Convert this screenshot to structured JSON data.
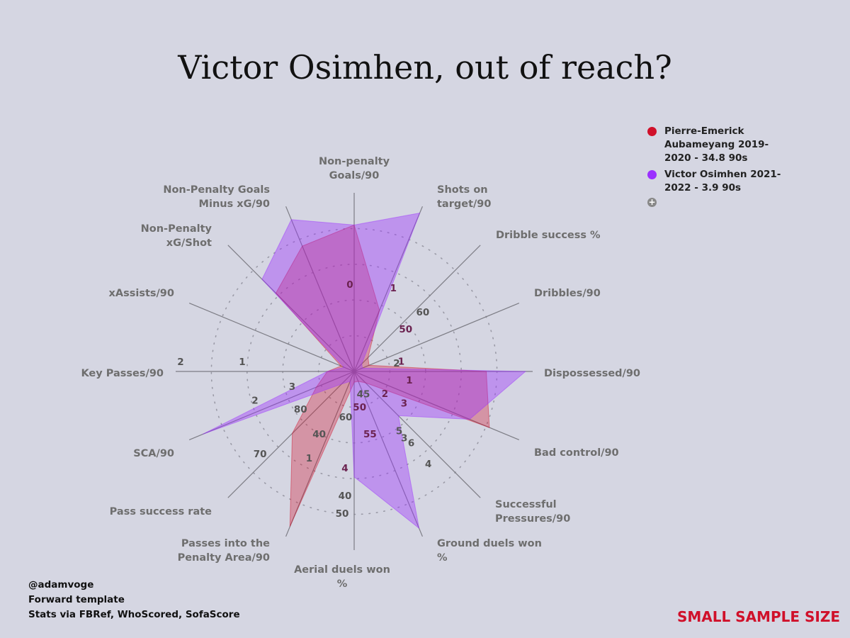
{
  "title": "Victor Osimhen, out of reach?",
  "legend": {
    "items": [
      {
        "label": "Pierre-Emerick Aubameyang 2019-2020 - 34.8 90s",
        "color": "#d0102a"
      },
      {
        "label": "Victor Osimhen 2021-2022 - 3.9 90s",
        "color": "#9b30ff"
      }
    ],
    "more_icon": "plus-circle-icon"
  },
  "footer": {
    "lines": [
      "@adamvoge",
      "Forward template",
      "Stats via FBRef, WhoScored, SofaScore"
    ]
  },
  "warning": "SMALL SAMPLE SIZE",
  "chart_data": {
    "type": "radar",
    "title": "Victor Osimhen, out of reach?",
    "axes": [
      "Non-penalty Goals/90",
      "Shots on target/90",
      "Dribble success %",
      "Dribbles/90",
      "Dispossessed/90",
      "Bad control/90",
      "Successful Pressures/90",
      "Ground duels won %",
      "Aerial duels won %",
      "Passes into the Penalty Area/90",
      "Pass success rate",
      "SCA/90",
      "Key Passes/90",
      "xAssists/90",
      "Non-Penalty xG/Shot",
      "Non-Penalty Goals Minus xG/90"
    ],
    "axis_label_lines": [
      [
        "Non-penalty",
        "Goals/90"
      ],
      [
        "Shots on",
        "target/90"
      ],
      [
        "Dribble success %"
      ],
      [
        "Dribbles/90"
      ],
      [
        "Dispossessed/90"
      ],
      [
        "Bad control/90"
      ],
      [
        "Successful",
        "Pressures/90"
      ],
      [
        "Ground duels won",
        "%"
      ],
      [
        "Aerial duels won",
        "%"
      ],
      [
        "Passes into the",
        "Penalty Area/90"
      ],
      [
        "Pass success rate"
      ],
      [
        "SCA/90"
      ],
      [
        "Key Passes/90"
      ],
      [
        "xAssists/90"
      ],
      [
        "Non-Penalty",
        "xG/Shot"
      ],
      [
        "Non-Penalty Goals",
        "Minus xG/90"
      ]
    ],
    "tick_labels": [
      {
        "axis": 0,
        "value": "0"
      },
      {
        "axis": 1,
        "value": "1"
      },
      {
        "axis": 2,
        "value": "50"
      },
      {
        "axis": 2,
        "value": "60"
      },
      {
        "axis": 3,
        "value": "1"
      },
      {
        "axis": 3,
        "value": "2"
      },
      {
        "axis": 4,
        "value": "1"
      },
      {
        "axis": 5,
        "value": "2"
      },
      {
        "axis": 5,
        "value": "3"
      },
      {
        "axis": 6,
        "value": "3"
      },
      {
        "axis": 6,
        "value": "4"
      },
      {
        "axis": 6,
        "value": "5"
      },
      {
        "axis": 6,
        "value": "6"
      },
      {
        "axis": 7,
        "value": "45"
      },
      {
        "axis": 7,
        "value": "50"
      },
      {
        "axis": 7,
        "value": "55"
      },
      {
        "axis": 8,
        "value": "4"
      },
      {
        "axis": 8,
        "value": "40"
      },
      {
        "axis": 8,
        "value": "50"
      },
      {
        "axis": 8,
        "value": "60"
      },
      {
        "axis": 9,
        "value": "40"
      },
      {
        "axis": 9,
        "value": "1"
      },
      {
        "axis": 10,
        "value": "70"
      },
      {
        "axis": 10,
        "value": "80"
      },
      {
        "axis": 11,
        "value": "2"
      },
      {
        "axis": 11,
        "value": "3"
      },
      {
        "axis": 12,
        "value": "1"
      },
      {
        "axis": 12,
        "value": "2"
      }
    ],
    "scale": "normalized 0-1 per axis",
    "grid": "dotted rings",
    "legend_position": "top-right",
    "series": [
      {
        "name": "Pierre-Emerick Aubameyang 2019-2020 - 34.8 90s",
        "color": "#d0102a",
        "values": [
          0.82,
          0.37,
          0.11,
          0.09,
          0.74,
          0.82,
          0.09,
          0.06,
          0.06,
          0.94,
          0.49,
          0.23,
          0.15,
          0.08,
          0.62,
          0.76
        ]
      },
      {
        "name": "Victor Osimhen 2021-2022 - 3.9 90s",
        "color": "#9b30ff",
        "values": [
          0.82,
          0.96,
          0.06,
          0.05,
          0.96,
          0.7,
          0.35,
          0.95,
          0.59,
          0.06,
          0.1,
          0.92,
          0.15,
          0.06,
          0.73,
          0.92
        ]
      }
    ]
  }
}
